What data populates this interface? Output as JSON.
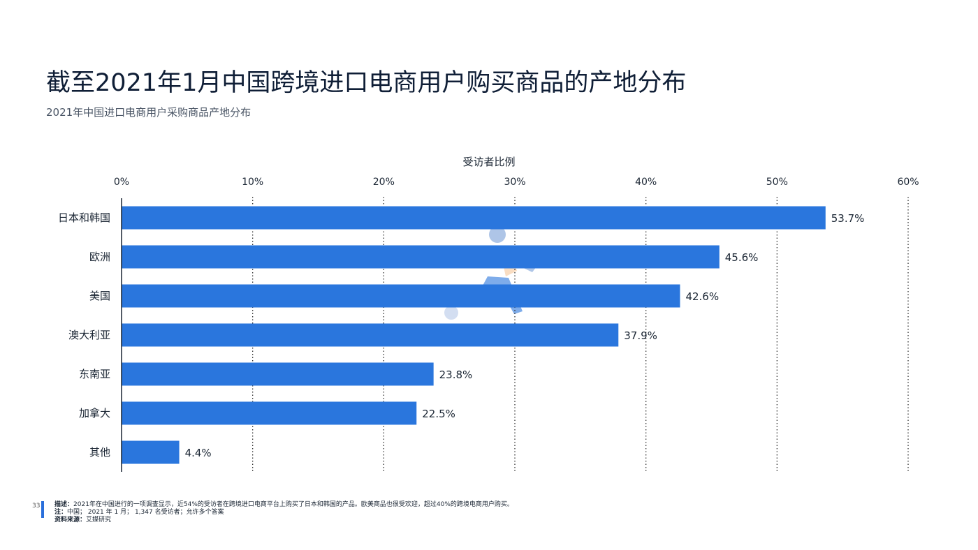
{
  "title": "截至2021年1月中国跨境进口电商用户购买商品的产地分布",
  "subtitle": "2021年中国进口电商用户采购商品产地分布",
  "chart_data": {
    "type": "bar",
    "orientation": "horizontal",
    "xlabel": "受访者比例",
    "xlim": [
      0,
      60
    ],
    "xticks": [
      "0%",
      "10%",
      "20%",
      "30%",
      "40%",
      "50%",
      "60%"
    ],
    "grid": true,
    "categories": [
      "日本和韩国",
      "欧洲",
      "美国",
      "澳大利亚",
      "东南亚",
      "加拿大",
      "其他"
    ],
    "values": [
      53.7,
      45.6,
      42.6,
      37.9,
      23.8,
      22.5,
      4.4
    ],
    "data_labels": [
      "53.7%",
      "45.6%",
      "42.6%",
      "37.9%",
      "23.8%",
      "22.5%",
      "4.4%"
    ],
    "bar_color": "#2a76dd"
  },
  "footer": {
    "page_number": "33",
    "desc_label": "描述：",
    "desc_text": "2021年在中国进行的一项调查显示，近54%的受访者在跨境进口电商平台上购买了日本和韩国的产品。欧美商品也很受欢迎，超过40%的跨境电商用户购买。",
    "note_label": "注：",
    "note_text": "中国； 2021 年 1 月； 1,347 名受访者；允许多个答案",
    "source_label": "资料来源：",
    "source_text": "艾媒研究"
  }
}
